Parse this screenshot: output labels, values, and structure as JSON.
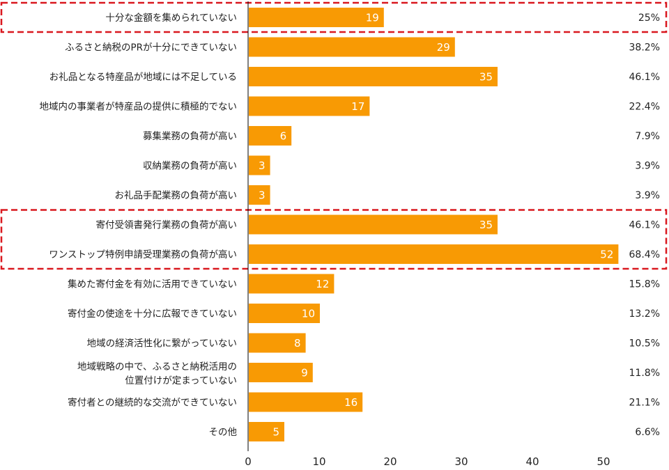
{
  "chart_data": {
    "type": "bar",
    "orientation": "horizontal",
    "categories": [
      [
        "十分な金額を集められていない"
      ],
      [
        "ふるさと納税のPRが十分にできていない"
      ],
      [
        "お礼品となる特産品が地域には不足している"
      ],
      [
        "地域内の事業者が特産品の提供に積極的でない"
      ],
      [
        "募集業務の負荷が高い"
      ],
      [
        "収納業務の負荷が高い"
      ],
      [
        "お礼品手配業務の負荷が高い"
      ],
      [
        "寄付受領書発行業務の負荷が高い"
      ],
      [
        "ワンストップ特例申請受理業務の負荷が高い"
      ],
      [
        "集めた寄付金を有効に活用できていない"
      ],
      [
        "寄付金の使途を十分に広報できていない"
      ],
      [
        "地域の経済活性化に繋がっていない"
      ],
      [
        "地域戦略の中で、ふるさと納税活用の",
        "位置付けが定まっていない"
      ],
      [
        "寄付者との継続的な交流ができていない"
      ],
      [
        "その他"
      ]
    ],
    "values": [
      19,
      29,
      35,
      17,
      6,
      3,
      3,
      35,
      52,
      12,
      10,
      8,
      9,
      16,
      5
    ],
    "percentages": [
      "25%",
      "38.2%",
      "46.1%",
      "22.4%",
      "7.9%",
      "3.9%",
      "3.9%",
      "46.1%",
      "68.4%",
      "15.8%",
      "13.2%",
      "10.5%",
      "11.8%",
      "21.1%",
      "6.6%"
    ],
    "x_ticks": [
      "0",
      "10",
      "20",
      "30",
      "40",
      "50"
    ],
    "xlim": [
      0,
      55
    ],
    "grid": false,
    "bar_color": "#f89a04",
    "highlight_color": "#d9181f",
    "highlight_groups": [
      [
        0
      ],
      [
        7,
        8
      ]
    ]
  }
}
